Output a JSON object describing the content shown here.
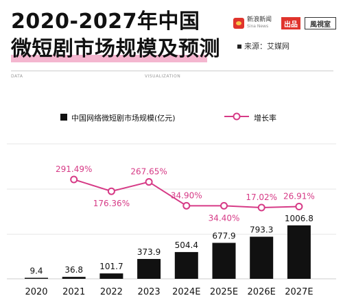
{
  "header": {
    "title_line1": "2020-2027年中国",
    "title_line2": "微短剧市场规模及预测",
    "source": "来源：艾媒网",
    "data_label": "DATA",
    "viz_label": "VISUALIZATION"
  },
  "logos": {
    "sina_cn": "新浪新闻",
    "sina_en": "Sina News",
    "chupin": "出品",
    "fengshi": "風視室"
  },
  "colors": {
    "bar": "#111111",
    "line": "#d63a86",
    "highlight": "#f4b6cf"
  },
  "chart_data": {
    "type": "bar",
    "categories": [
      "2020",
      "2021",
      "2022",
      "2023",
      "2024E",
      "2025E",
      "2026E",
      "2027E"
    ],
    "series": [
      {
        "name": "中国网络微短剧市场规模(亿元)",
        "type": "bar",
        "values": [
          9.4,
          36.8,
          101.7,
          373.9,
          504.4,
          677.9,
          793.3,
          1006.8
        ],
        "labels": [
          "9.4",
          "36.8",
          "101.7",
          "373.9",
          "504.4",
          "677.9",
          "793.3",
          "1006.8"
        ]
      },
      {
        "name": "增长率",
        "type": "line",
        "x": [
          "2021",
          "2022",
          "2023",
          "2024E",
          "2025E",
          "2026E",
          "2027E"
        ],
        "values": [
          291.49,
          176.36,
          267.65,
          34.9,
          34.4,
          17.02,
          26.91
        ],
        "labels": [
          "291.49%",
          "176.36%",
          "267.65%",
          "34.90%",
          "34.40%",
          "17.02%",
          "26.91%"
        ]
      }
    ],
    "legend_position": "top",
    "grid": true
  }
}
